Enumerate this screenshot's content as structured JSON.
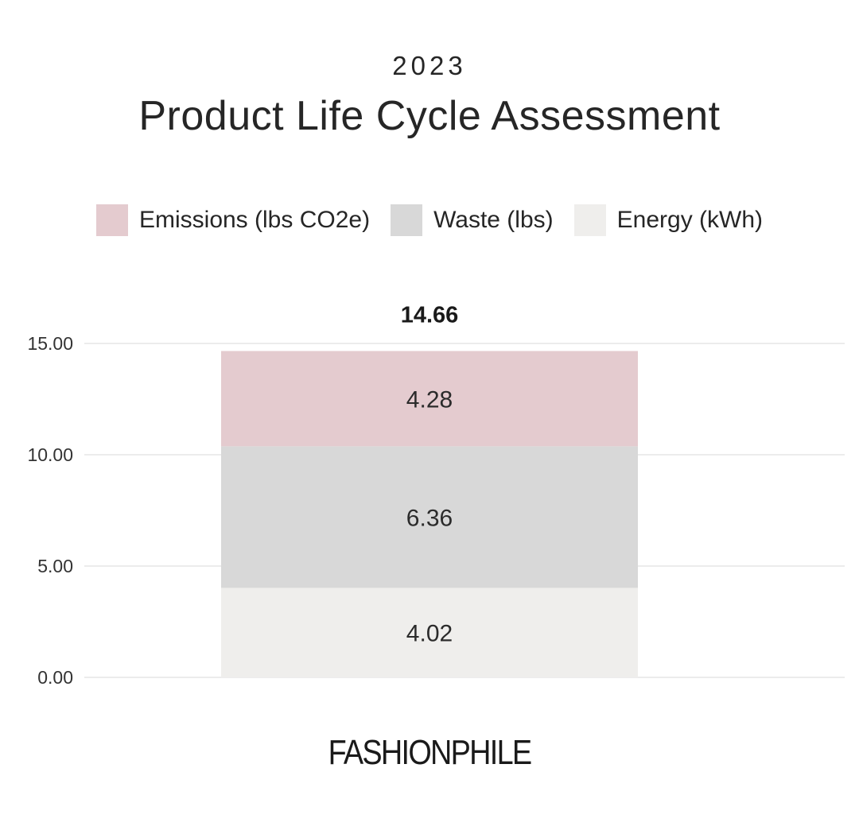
{
  "header": {
    "year": "2023",
    "title": "Product Life Cycle Assessment"
  },
  "brand": {
    "logo_text": "FASHIONPHILE"
  },
  "chart_data": {
    "type": "bar",
    "stacked": true,
    "categories": [
      ""
    ],
    "series": [
      {
        "name": "Energy (kWh)",
        "values": [
          4.02
        ],
        "color": "#efeeec",
        "label": "4.02"
      },
      {
        "name": "Waste (lbs)",
        "values": [
          6.36
        ],
        "color": "#d8d8d8",
        "label": "6.36"
      },
      {
        "name": "Emissions (lbs CO2e)",
        "values": [
          4.28
        ],
        "color": "#e4cbcf",
        "label": "4.28"
      }
    ],
    "legend_order": [
      "Emissions (lbs CO2e)",
      "Waste (lbs)",
      "Energy (kWh)"
    ],
    "total_label": "14.66",
    "ylim": [
      0,
      15
    ],
    "yticks": [
      "0.00",
      "5.00",
      "10.00",
      "15.00"
    ],
    "grid": true,
    "legend_position": "top-center"
  }
}
